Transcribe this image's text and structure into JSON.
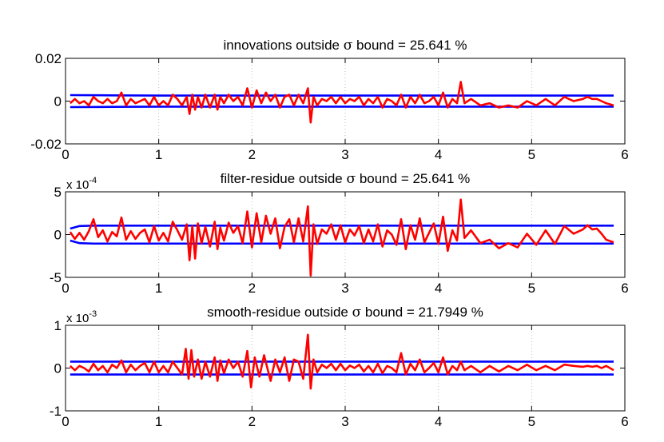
{
  "chart_data": [
    {
      "type": "line",
      "title_prefix": "innovations outside",
      "title_symbol": "σ",
      "title_suffix": "bound = 25.641 %",
      "xlim": [
        0,
        6
      ],
      "ylim": [
        -0.02,
        0.02
      ],
      "xticks": [
        0,
        1,
        2,
        3,
        4,
        5,
        6
      ],
      "xtick_labels": [
        "0",
        "1",
        "2",
        "3",
        "4",
        "5",
        "6"
      ],
      "yticks": [
        -0.02,
        0,
        0.02
      ],
      "ytick_labels": [
        "-0.02",
        "0",
        "0.02"
      ],
      "exponent_base": "",
      "exponent_power": "",
      "grid": "vertical dotted",
      "series": [
        {
          "role": "upper-bound",
          "color": "#0000ff",
          "x": [
            0.05,
            0.5,
            1.0,
            2.0,
            3.0,
            4.0,
            5.0,
            5.88
          ],
          "y": [
            0.0028,
            0.0027,
            0.0026,
            0.0026,
            0.0026,
            0.0026,
            0.0026,
            0.0026
          ]
        },
        {
          "role": "lower-bound",
          "color": "#0000ff",
          "x": [
            0.05,
            0.5,
            1.0,
            2.0,
            3.0,
            4.0,
            5.0,
            5.88
          ],
          "y": [
            -0.0028,
            -0.0027,
            -0.0026,
            -0.0026,
            -0.0026,
            -0.0026,
            -0.0026,
            -0.0026
          ]
        },
        {
          "role": "innovations",
          "color": "#ff0000",
          "x": [
            0.05,
            0.1,
            0.15,
            0.2,
            0.25,
            0.3,
            0.35,
            0.4,
            0.45,
            0.5,
            0.55,
            0.6,
            0.65,
            0.7,
            0.75,
            0.8,
            0.85,
            0.9,
            0.95,
            1.0,
            1.05,
            1.1,
            1.15,
            1.2,
            1.25,
            1.3,
            1.33,
            1.36,
            1.39,
            1.42,
            1.46,
            1.5,
            1.55,
            1.6,
            1.63,
            1.66,
            1.7,
            1.75,
            1.8,
            1.85,
            1.9,
            1.95,
            2.0,
            2.05,
            2.1,
            2.15,
            2.2,
            2.25,
            2.3,
            2.35,
            2.4,
            2.45,
            2.5,
            2.55,
            2.6,
            2.63,
            2.66,
            2.7,
            2.75,
            2.8,
            2.85,
            2.9,
            2.95,
            3.0,
            3.05,
            3.1,
            3.15,
            3.2,
            3.25,
            3.3,
            3.35,
            3.4,
            3.45,
            3.5,
            3.55,
            3.6,
            3.65,
            3.7,
            3.75,
            3.8,
            3.85,
            3.9,
            3.95,
            4.0,
            4.05,
            4.1,
            4.15,
            4.2,
            4.24,
            4.28,
            4.35,
            4.45,
            4.55,
            4.65,
            4.75,
            4.85,
            4.95,
            5.05,
            5.15,
            5.25,
            5.35,
            5.45,
            5.55,
            5.6,
            5.65,
            5.7,
            5.75,
            5.8,
            5.88
          ],
          "y": [
            -0.001,
            0.001,
            -0.001,
            0.0,
            -0.002,
            0.002,
            0.0,
            -0.001,
            0.001,
            -0.001,
            0.0,
            0.004,
            -0.002,
            0.001,
            -0.001,
            0.0,
            0.001,
            -0.002,
            0.002,
            -0.002,
            0.0,
            -0.002,
            0.003,
            0.001,
            -0.002,
            0.002,
            -0.006,
            0.003,
            -0.004,
            0.002,
            -0.003,
            0.003,
            -0.003,
            0.003,
            -0.004,
            0.002,
            -0.001,
            0.003,
            0.0,
            0.002,
            -0.002,
            0.006,
            -0.003,
            0.005,
            -0.001,
            0.004,
            0.0,
            0.003,
            -0.003,
            0.002,
            0.003,
            -0.002,
            0.003,
            -0.001,
            0.006,
            -0.01,
            0.002,
            -0.002,
            0.001,
            0.0,
            0.002,
            -0.001,
            0.002,
            -0.001,
            0.001,
            0.0,
            0.002,
            -0.002,
            0.001,
            -0.001,
            0.002,
            -0.003,
            0.001,
            0.0,
            -0.002,
            0.003,
            -0.003,
            0.002,
            -0.001,
            0.003,
            -0.001,
            0.0,
            0.002,
            -0.002,
            0.004,
            -0.003,
            0.001,
            -0.001,
            0.009,
            -0.001,
            0.001,
            -0.002,
            -0.001,
            -0.003,
            -0.002,
            -0.003,
            0.0,
            -0.002,
            0.001,
            -0.002,
            0.002,
            0.0,
            0.001,
            0.002,
            0.001,
            0.001,
            0.0,
            -0.001,
            -0.002
          ]
        }
      ]
    },
    {
      "type": "line",
      "title_prefix": "filter-residue outside",
      "title_symbol": "σ",
      "title_suffix": "bound = 25.641 %",
      "xlim": [
        0,
        6
      ],
      "ylim": [
        -5,
        5
      ],
      "xticks": [
        0,
        1,
        2,
        3,
        4,
        5,
        6
      ],
      "xtick_labels": [
        "0",
        "1",
        "2",
        "3",
        "4",
        "5",
        "6"
      ],
      "yticks": [
        -5,
        0,
        5
      ],
      "ytick_labels": [
        "-5",
        "0",
        "5"
      ],
      "exponent_base": "x 10",
      "exponent_power": "-4",
      "grid": "vertical dotted",
      "series": [
        {
          "role": "upper-bound",
          "color": "#0000ff",
          "x": [
            0.05,
            0.15,
            0.3,
            1.0,
            2.0,
            3.0,
            4.0,
            5.0,
            5.88
          ],
          "y": [
            0.7,
            1.0,
            1.05,
            1.05,
            1.05,
            1.05,
            1.05,
            1.05,
            1.05
          ]
        },
        {
          "role": "lower-bound",
          "color": "#0000ff",
          "x": [
            0.05,
            0.15,
            0.3,
            1.0,
            2.0,
            3.0,
            4.0,
            5.0,
            5.88
          ],
          "y": [
            -0.7,
            -1.0,
            -1.05,
            -1.05,
            -1.05,
            -1.05,
            -1.05,
            -1.05,
            -1.05
          ]
        },
        {
          "role": "filter-residue",
          "color": "#ff0000",
          "x": [
            0.05,
            0.1,
            0.15,
            0.2,
            0.25,
            0.3,
            0.35,
            0.4,
            0.45,
            0.5,
            0.55,
            0.6,
            0.65,
            0.7,
            0.75,
            0.8,
            0.85,
            0.9,
            0.95,
            1.0,
            1.05,
            1.1,
            1.15,
            1.2,
            1.25,
            1.3,
            1.33,
            1.36,
            1.39,
            1.42,
            1.46,
            1.5,
            1.55,
            1.6,
            1.63,
            1.66,
            1.7,
            1.75,
            1.8,
            1.85,
            1.9,
            1.95,
            2.0,
            2.05,
            2.1,
            2.15,
            2.2,
            2.25,
            2.3,
            2.35,
            2.4,
            2.45,
            2.5,
            2.55,
            2.6,
            2.63,
            2.66,
            2.7,
            2.75,
            2.8,
            2.85,
            2.9,
            2.95,
            3.0,
            3.05,
            3.1,
            3.15,
            3.2,
            3.25,
            3.3,
            3.35,
            3.4,
            3.45,
            3.5,
            3.55,
            3.6,
            3.65,
            3.7,
            3.75,
            3.8,
            3.85,
            3.9,
            3.95,
            4.0,
            4.05,
            4.1,
            4.15,
            4.2,
            4.24,
            4.28,
            4.35,
            4.45,
            4.55,
            4.65,
            4.75,
            4.85,
            4.95,
            5.05,
            5.15,
            5.25,
            5.35,
            5.45,
            5.55,
            5.6,
            5.65,
            5.7,
            5.75,
            5.8,
            5.88
          ],
          "y": [
            0.3,
            -0.5,
            0.2,
            -0.6,
            0.4,
            1.8,
            -0.3,
            0.5,
            -0.8,
            0.3,
            -0.2,
            2.0,
            -0.6,
            0.4,
            -0.5,
            0.2,
            0.6,
            -0.9,
            1.0,
            -0.7,
            0.2,
            -0.8,
            1.5,
            0.5,
            -0.6,
            1.2,
            -3.0,
            1.0,
            -2.8,
            1.3,
            -1.0,
            0.9,
            -1.4,
            1.5,
            -1.7,
            0.8,
            -0.7,
            1.4,
            0.2,
            1.0,
            -1.0,
            2.7,
            -1.5,
            2.5,
            -0.9,
            2.2,
            0.1,
            1.9,
            -1.6,
            0.9,
            1.8,
            -0.9,
            1.9,
            -0.8,
            3.3,
            -4.8,
            1.2,
            -1.1,
            0.6,
            0.1,
            1.2,
            -0.6,
            1.1,
            -0.9,
            0.6,
            -0.1,
            1.0,
            -1.0,
            0.6,
            -0.8,
            1.2,
            -1.4,
            0.5,
            0.0,
            -1.2,
            1.8,
            -1.7,
            1.1,
            -0.6,
            1.9,
            -0.9,
            0.2,
            1.3,
            -1.1,
            2.1,
            -1.9,
            0.5,
            -0.7,
            4.1,
            -0.4,
            0.5,
            -1.0,
            -0.6,
            -1.6,
            -1.0,
            -1.5,
            0.1,
            -1.2,
            0.5,
            -1.1,
            1.0,
            0.1,
            0.6,
            1.1,
            0.6,
            0.7,
            0.1,
            -0.6,
            -0.9
          ]
        }
      ]
    },
    {
      "type": "line",
      "title_prefix": "smooth-residue outside",
      "title_symbol": "σ",
      "title_suffix": "bound = 21.7949 %",
      "xlim": [
        0,
        6
      ],
      "ylim": [
        -1,
        1
      ],
      "xticks": [
        0,
        1,
        2,
        3,
        4,
        5,
        6
      ],
      "xtick_labels": [
        "0",
        "1",
        "2",
        "3",
        "4",
        "5",
        "6"
      ],
      "yticks": [
        -1,
        0,
        1
      ],
      "ytick_labels": [
        "-1",
        "0",
        "1"
      ],
      "exponent_base": "x 10",
      "exponent_power": "-3",
      "grid": "vertical dotted",
      "series": [
        {
          "role": "upper-bound",
          "color": "#0000ff",
          "x": [
            0.05,
            1.0,
            2.0,
            3.0,
            4.0,
            5.0,
            5.88
          ],
          "y": [
            0.15,
            0.15,
            0.15,
            0.15,
            0.15,
            0.15,
            0.15
          ]
        },
        {
          "role": "lower-bound",
          "color": "#0000ff",
          "x": [
            0.05,
            1.0,
            2.0,
            3.0,
            4.0,
            5.0,
            5.88
          ],
          "y": [
            -0.15,
            -0.15,
            -0.15,
            -0.15,
            -0.15,
            -0.15,
            -0.15
          ]
        },
        {
          "role": "smooth-residue",
          "color": "#ff0000",
          "x": [
            0.05,
            0.1,
            0.15,
            0.2,
            0.25,
            0.3,
            0.35,
            0.4,
            0.45,
            0.5,
            0.55,
            0.6,
            0.65,
            0.7,
            0.75,
            0.8,
            0.85,
            0.9,
            0.95,
            1.0,
            1.05,
            1.1,
            1.15,
            1.2,
            1.25,
            1.29,
            1.32,
            1.35,
            1.38,
            1.42,
            1.46,
            1.5,
            1.55,
            1.6,
            1.63,
            1.66,
            1.7,
            1.75,
            1.8,
            1.85,
            1.9,
            1.95,
            1.99,
            2.03,
            2.08,
            2.13,
            2.2,
            2.25,
            2.3,
            2.35,
            2.4,
            2.45,
            2.5,
            2.55,
            2.6,
            2.63,
            2.66,
            2.7,
            2.75,
            2.8,
            2.85,
            2.9,
            2.95,
            3.0,
            3.05,
            3.1,
            3.15,
            3.2,
            3.25,
            3.3,
            3.35,
            3.4,
            3.45,
            3.5,
            3.55,
            3.6,
            3.65,
            3.7,
            3.75,
            3.8,
            3.85,
            3.9,
            3.95,
            4.0,
            4.05,
            4.1,
            4.15,
            4.2,
            4.24,
            4.28,
            4.35,
            4.45,
            4.55,
            4.65,
            4.75,
            4.85,
            4.95,
            5.05,
            5.15,
            5.25,
            5.35,
            5.45,
            5.55,
            5.6,
            5.65,
            5.7,
            5.75,
            5.8,
            5.88
          ],
          "y": [
            0.05,
            -0.05,
            0.05,
            0.0,
            -0.08,
            0.1,
            -0.05,
            0.05,
            -0.1,
            0.08,
            0.0,
            0.18,
            -0.1,
            0.08,
            -0.05,
            0.05,
            0.12,
            -0.1,
            0.15,
            -0.1,
            0.05,
            -0.1,
            0.15,
            0.0,
            -0.15,
            0.45,
            -0.25,
            0.42,
            -0.2,
            0.2,
            -0.25,
            0.15,
            -0.2,
            0.25,
            -0.3,
            0.18,
            -0.12,
            0.2,
            0.0,
            0.15,
            -0.2,
            0.4,
            -0.45,
            0.25,
            -0.2,
            0.3,
            -0.3,
            0.2,
            -0.1,
            0.25,
            -0.3,
            0.2,
            0.15,
            -0.25,
            0.78,
            -0.48,
            0.2,
            -0.1,
            0.08,
            0.0,
            0.1,
            -0.05,
            0.1,
            -0.05,
            0.06,
            0.0,
            0.08,
            -0.08,
            0.05,
            -0.1,
            0.1,
            -0.12,
            0.05,
            0.0,
            -0.1,
            0.35,
            -0.15,
            0.1,
            -0.05,
            0.2,
            -0.1,
            0.0,
            0.12,
            -0.1,
            0.25,
            -0.15,
            0.05,
            -0.05,
            0.15,
            -0.05,
            0.05,
            -0.1,
            0.05,
            -0.08,
            0.05,
            -0.05,
            0.08,
            -0.05,
            0.05,
            -0.05,
            0.08,
            0.05,
            0.03,
            0.05,
            0.03,
            0.05,
            0.0,
            0.05,
            -0.05
          ]
        }
      ]
    }
  ]
}
